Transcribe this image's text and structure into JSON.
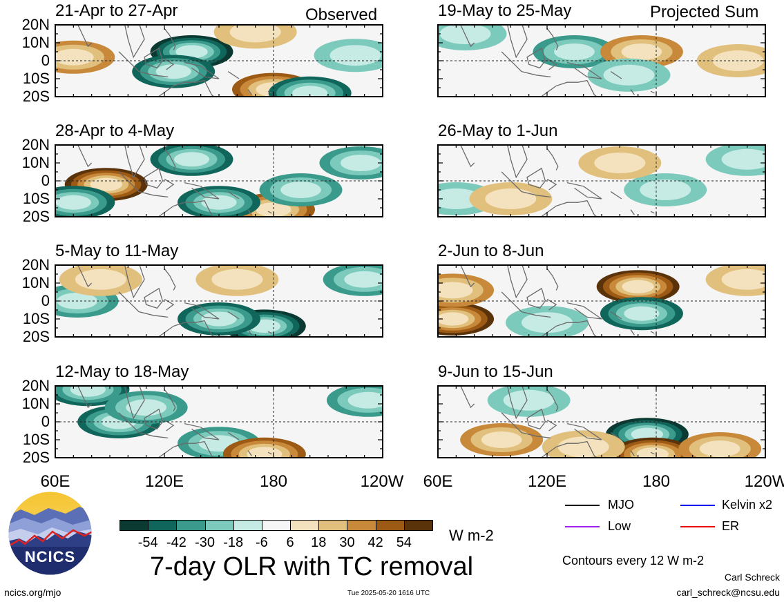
{
  "header": {
    "left_label": "Observed",
    "right_label": "Projected Sum"
  },
  "panels": [
    {
      "title": "21-Apr to 27-Apr"
    },
    {
      "title": "28-Apr to 4-May"
    },
    {
      "title": "5-May to 11-May"
    },
    {
      "title": "12-May to 18-May"
    },
    {
      "title": "19-May to 25-May"
    },
    {
      "title": "26-May to 1-Jun"
    },
    {
      "title": "2-Jun to 8-Jun"
    },
    {
      "title": "9-Jun to 15-Jun"
    }
  ],
  "axes": {
    "y_ticks": [
      "20N",
      "10N",
      "0",
      "10S",
      "20S"
    ],
    "x_ticks": [
      "60E",
      "120E",
      "180",
      "120W"
    ]
  },
  "colorbar": {
    "labels": [
      "-54",
      "-42",
      "-30",
      "-18",
      "-6",
      "6",
      "18",
      "30",
      "42",
      "54"
    ],
    "units": "W m-2",
    "colors": [
      "#0a3a32",
      "#10665a",
      "#3a9a8c",
      "#7ccabc",
      "#c6ebe4",
      "#f5f5f5",
      "#f3e2bd",
      "#e0c07c",
      "#c88a3a",
      "#9c5a14",
      "#5a330a"
    ]
  },
  "legend": {
    "items": [
      {
        "label": "MJO",
        "color": "#000000"
      },
      {
        "label": "Kelvin x2",
        "color": "#0000ee"
      },
      {
        "label": "Low",
        "color": "#a020f0"
      },
      {
        "label": "ER",
        "color": "#ee0000"
      }
    ],
    "contour_note": "Contours every 12 W m-2"
  },
  "footer": {
    "main_title": "7-day OLR with TC removal",
    "logo_text": "NCICS",
    "url": "ncics.org/mjo",
    "timestamp": "Tue 2025-05-20 1616 UTC",
    "author": "Carl Schreck",
    "email": "carl_schreck@ncsu.edu"
  },
  "chart_data": {
    "type": "heatmap",
    "variable": "OLR anomaly",
    "units": "W m-2",
    "contour_interval": 12,
    "x_ticks": [
      "60E",
      "120E",
      "180",
      "120W"
    ],
    "xlim": [
      60,
      240
    ],
    "y_ticks": [
      "20N",
      "10N",
      "0",
      "10S",
      "20S"
    ],
    "ylim": [
      -20,
      20
    ],
    "reference_lines": {
      "lon": 180,
      "lat": 0
    },
    "panels": [
      {
        "title": "21-Apr to 27-Apr",
        "kind": "Observed",
        "features": [
          {
            "lon": 135,
            "lat": 5,
            "value": -54
          },
          {
            "lon": 125,
            "lat": -6,
            "value": -42
          },
          {
            "lon": 70,
            "lat": 2,
            "value": 30
          },
          {
            "lon": 180,
            "lat": -16,
            "value": 42
          },
          {
            "lon": 200,
            "lat": -18,
            "value": -42
          },
          {
            "lon": 170,
            "lat": 16,
            "value": 18
          },
          {
            "lon": 225,
            "lat": 3,
            "value": -18
          }
        ]
      },
      {
        "title": "28-Apr to 4-May",
        "kind": "Observed",
        "features": [
          {
            "lon": 88,
            "lat": -2,
            "value": 54
          },
          {
            "lon": 180,
            "lat": -16,
            "value": 42
          },
          {
            "lon": 135,
            "lat": 12,
            "value": -42
          },
          {
            "lon": 150,
            "lat": -12,
            "value": -42
          },
          {
            "lon": 70,
            "lat": -12,
            "value": -42
          },
          {
            "lon": 228,
            "lat": 10,
            "value": -30
          },
          {
            "lon": 195,
            "lat": -5,
            "value": -30
          }
        ]
      },
      {
        "title": "5-May to 11-May",
        "kind": "Observed",
        "features": [
          {
            "lon": 175,
            "lat": -14,
            "value": -54
          },
          {
            "lon": 150,
            "lat": -10,
            "value": -42
          },
          {
            "lon": 72,
            "lat": 0,
            "value": -30
          },
          {
            "lon": 160,
            "lat": 12,
            "value": 18
          },
          {
            "lon": 230,
            "lat": 12,
            "value": -30
          },
          {
            "lon": 85,
            "lat": 12,
            "value": 18
          }
        ]
      },
      {
        "title": "12-May to 18-May",
        "kind": "Observed",
        "features": [
          {
            "lon": 78,
            "lat": 18,
            "value": -42
          },
          {
            "lon": 95,
            "lat": 0,
            "value": -42
          },
          {
            "lon": 150,
            "lat": -12,
            "value": -30
          },
          {
            "lon": 175,
            "lat": -18,
            "value": 42
          },
          {
            "lon": 232,
            "lat": 12,
            "value": -30
          },
          {
            "lon": 110,
            "lat": 8,
            "value": -30
          }
        ]
      },
      {
        "title": "19-May to 25-May",
        "kind": "Projected Sum",
        "features": [
          {
            "lon": 135,
            "lat": 5,
            "value": -30
          },
          {
            "lon": 172,
            "lat": 5,
            "value": 30
          },
          {
            "lon": 165,
            "lat": -8,
            "value": -18
          },
          {
            "lon": 75,
            "lat": 15,
            "value": -18
          },
          {
            "lon": 225,
            "lat": 0,
            "value": 18
          }
        ]
      },
      {
        "title": "26-May to 1-Jun",
        "kind": "Projected Sum",
        "features": [
          {
            "lon": 70,
            "lat": -10,
            "value": -18
          },
          {
            "lon": 185,
            "lat": -5,
            "value": -18
          },
          {
            "lon": 160,
            "lat": 10,
            "value": 18
          },
          {
            "lon": 230,
            "lat": 12,
            "value": -18
          },
          {
            "lon": 100,
            "lat": -10,
            "value": 18
          }
        ]
      },
      {
        "title": "2-Jun to 8-Jun",
        "kind": "Projected Sum",
        "features": [
          {
            "lon": 68,
            "lat": -10,
            "value": 54
          },
          {
            "lon": 68,
            "lat": 6,
            "value": 30
          },
          {
            "lon": 170,
            "lat": 8,
            "value": 54
          },
          {
            "lon": 172,
            "lat": -7,
            "value": -42
          },
          {
            "lon": 120,
            "lat": -12,
            "value": -18
          },
          {
            "lon": 230,
            "lat": 12,
            "value": 18
          }
        ]
      },
      {
        "title": "9-Jun to 15-Jun",
        "kind": "Projected Sum",
        "features": [
          {
            "lon": 175,
            "lat": -7,
            "value": -54
          },
          {
            "lon": 178,
            "lat": -18,
            "value": 54
          },
          {
            "lon": 95,
            "lat": -10,
            "value": 30
          },
          {
            "lon": 140,
            "lat": -14,
            "value": 18
          },
          {
            "lon": 215,
            "lat": -15,
            "value": 30
          },
          {
            "lon": 110,
            "lat": 12,
            "value": -18
          }
        ]
      }
    ]
  }
}
